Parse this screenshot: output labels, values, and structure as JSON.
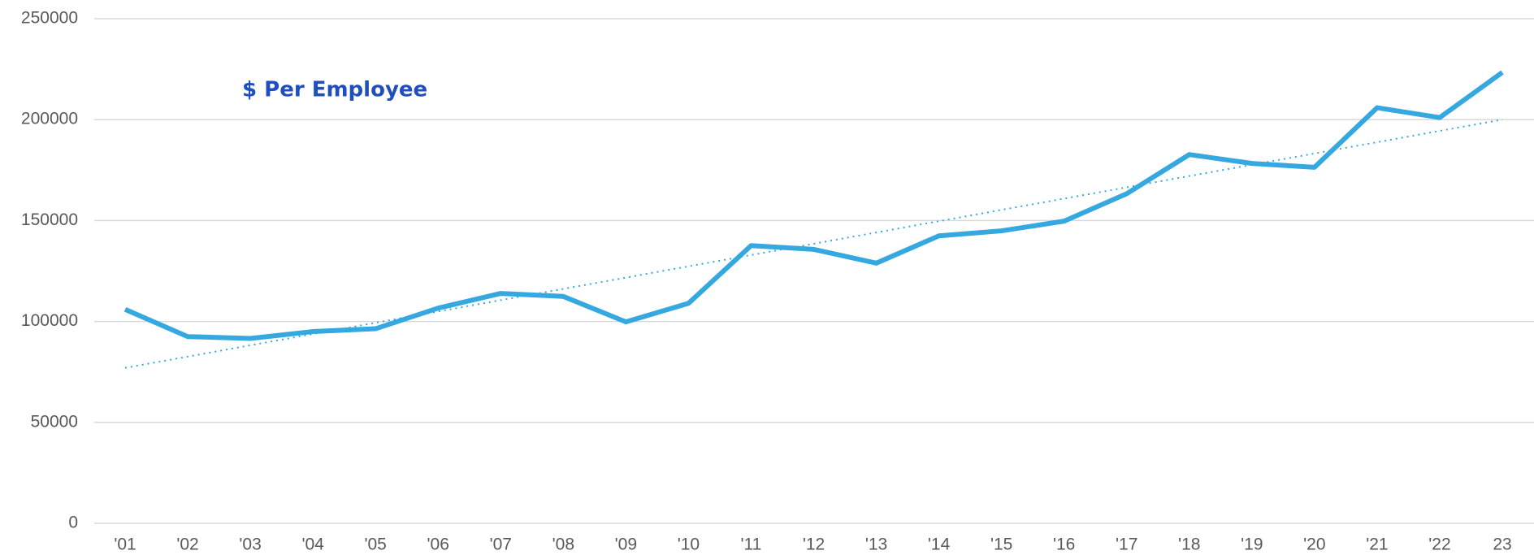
{
  "chart_data": {
    "type": "line",
    "title": "$ Per Employee",
    "categories": [
      "'01",
      "'02",
      "'03",
      "'04",
      "'05",
      "'06",
      "'07",
      "'08",
      "'09",
      "'10",
      "'11",
      "'12",
      "'13",
      "'14",
      "'15",
      "'16",
      "'17",
      "'18",
      "'19",
      "'20",
      "'21",
      "'22",
      "23"
    ],
    "series": [
      {
        "color": "#35a8e0",
        "values": [
          106000,
          92500,
          91600,
          95000,
          96400,
          106600,
          113900,
          112400,
          99800,
          109000,
          137600,
          135700,
          128900,
          142400,
          144900,
          149700,
          163300,
          182700,
          178300,
          176400,
          205900,
          201000,
          223400
        ]
      }
    ],
    "trendline": {
      "color": "#35a8e0",
      "values": [
        77000,
        200000
      ]
    },
    "ylim": [
      0,
      250000
    ],
    "yticks": [
      0,
      50000,
      100000,
      150000,
      200000,
      250000
    ],
    "grid": true
  }
}
